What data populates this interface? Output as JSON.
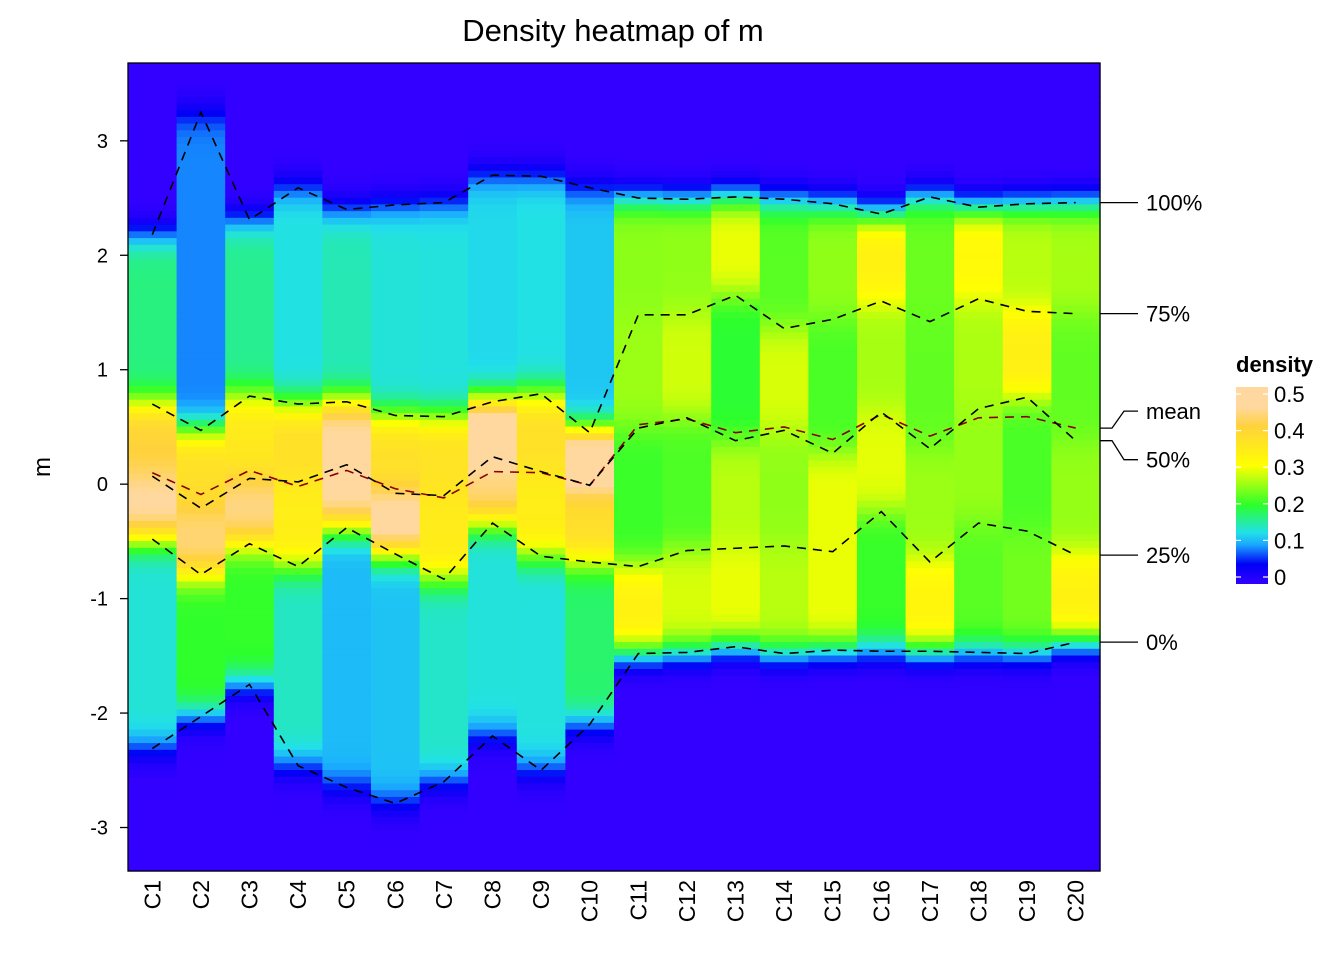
{
  "chart_data": {
    "type": "heatmap",
    "title": "Density heatmap of m",
    "xlabel": "",
    "ylabel": "m",
    "ylim": [
      -3.38,
      3.68
    ],
    "y_ticks": [
      -3,
      -2,
      -1,
      0,
      1,
      2,
      3
    ],
    "categories": [
      "C1",
      "C2",
      "C3",
      "C4",
      "C5",
      "C6",
      "C7",
      "C8",
      "C9",
      "C10",
      "C11",
      "C12",
      "C13",
      "C14",
      "C15",
      "C16",
      "C17",
      "C18",
      "C19",
      "C20"
    ],
    "quantile_lines": [
      {
        "name": "100%",
        "color": "#000000",
        "values": [
          2.18,
          3.25,
          2.31,
          2.59,
          2.4,
          2.44,
          2.46,
          2.7,
          2.69,
          2.59,
          2.5,
          2.49,
          2.51,
          2.49,
          2.45,
          2.36,
          2.51,
          2.42,
          2.45,
          2.46
        ]
      },
      {
        "name": "75%",
        "color": "#000000",
        "values": [
          0.7,
          0.47,
          0.77,
          0.7,
          0.72,
          0.6,
          0.59,
          0.72,
          0.79,
          0.45,
          1.48,
          1.48,
          1.65,
          1.36,
          1.44,
          1.6,
          1.42,
          1.62,
          1.51,
          1.49
        ]
      },
      {
        "name": "mean",
        "color": "#8B0000",
        "values": [
          0.1,
          -0.09,
          0.12,
          -0.02,
          0.12,
          -0.04,
          -0.12,
          0.11,
          0.1,
          -0.01,
          0.52,
          0.57,
          0.45,
          0.5,
          0.39,
          0.61,
          0.42,
          0.58,
          0.59,
          0.49
        ]
      },
      {
        "name": "50%",
        "color": "#000000",
        "values": [
          0.07,
          -0.21,
          0.05,
          0.02,
          0.17,
          -0.08,
          -0.1,
          0.24,
          0.11,
          -0.01,
          0.49,
          0.58,
          0.38,
          0.47,
          0.27,
          0.63,
          0.31,
          0.66,
          0.76,
          0.38
        ]
      },
      {
        "name": "25%",
        "color": "#000000",
        "values": [
          -0.48,
          -0.79,
          -0.52,
          -0.72,
          -0.38,
          -0.61,
          -0.83,
          -0.34,
          -0.63,
          -0.68,
          -0.72,
          -0.58,
          -0.56,
          -0.54,
          -0.59,
          -0.24,
          -0.68,
          -0.34,
          -0.41,
          -0.62
        ]
      },
      {
        "name": "0%",
        "color": "#000000",
        "values": [
          -2.31,
          -2.03,
          -1.75,
          -2.46,
          -2.65,
          -2.79,
          -2.6,
          -2.2,
          -2.5,
          -2.1,
          -1.48,
          -1.47,
          -1.42,
          -1.48,
          -1.45,
          -1.46,
          -1.46,
          -1.47,
          -1.48,
          -1.38
        ]
      }
    ],
    "legend": {
      "title": "density",
      "placement": "right",
      "ticks": [
        "0",
        "0.1",
        "0.2",
        "0.3",
        "0.4",
        "0.5"
      ],
      "range": [
        0,
        0.5
      ],
      "colors": [
        {
          "v": 0,
          "c": "#3300FF"
        },
        {
          "v": 0.05,
          "c": "#0000F5"
        },
        {
          "v": 0.1,
          "c": "#1AA8FF"
        },
        {
          "v": 0.13,
          "c": "#22E0E8"
        },
        {
          "v": 0.2,
          "c": "#2CFF2C"
        },
        {
          "v": 0.3,
          "c": "#FFFF00"
        },
        {
          "v": 0.4,
          "c": "#FFD23C"
        },
        {
          "v": 0.45,
          "c": "#FFD8A0"
        },
        {
          "v": 0.5,
          "c": "#FFD8A0"
        }
      ]
    }
  }
}
